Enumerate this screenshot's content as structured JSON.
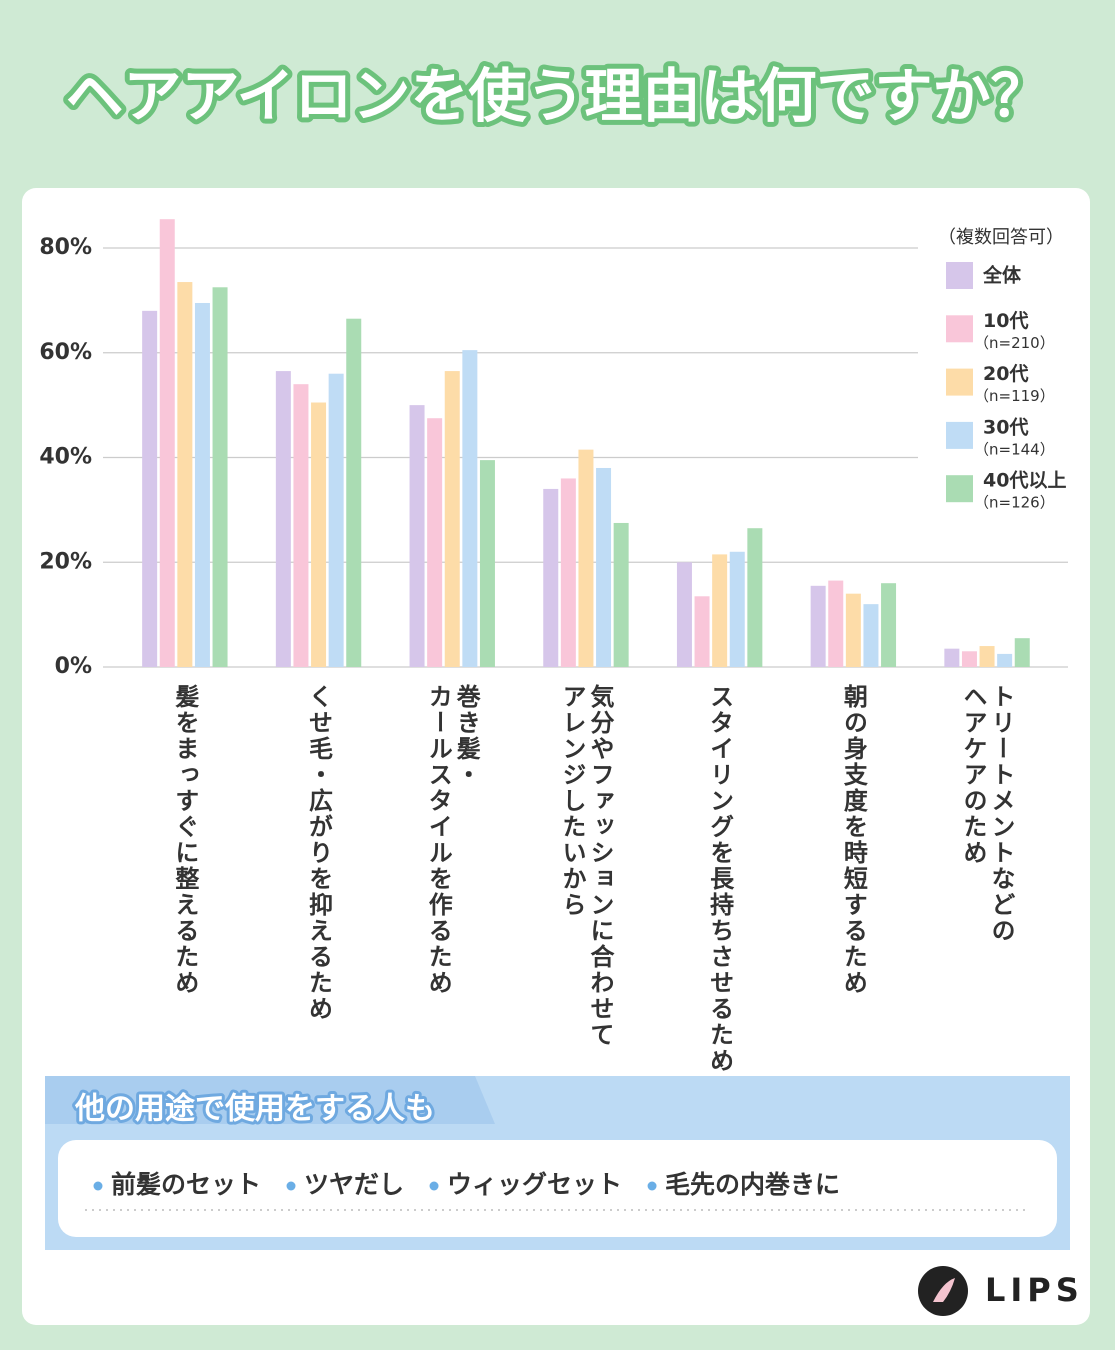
{
  "title": "ヘアアイロンを使う理由は何ですか？",
  "chart_data": {
    "type": "bar",
    "categories": [
      "髪をまっすぐに整えるため",
      "くせ毛・広がりを抑えるため",
      "巻き髪・\nカールスタイルを作るため",
      "気分やファッションに合わせて\nアレンジしたいから",
      "スタイリングを長持ちさせるため",
      "朝の身支度を時短するため",
      "トリートメントなどの\nヘアケアのため"
    ],
    "series": [
      {
        "name": "全体",
        "color": "#d6c6ea",
        "values": [
          68,
          56.5,
          50,
          34,
          20,
          15.5,
          3.5
        ]
      },
      {
        "name": "10代",
        "note": "（n=210）",
        "color": "#f9c6d9",
        "values": [
          85.5,
          54,
          47.5,
          36,
          13.5,
          16.5,
          3
        ]
      },
      {
        "name": "20代",
        "note": "（n=119）",
        "color": "#fddca8",
        "values": [
          73.5,
          50.5,
          56.5,
          41.5,
          21.5,
          14,
          4
        ]
      },
      {
        "name": "30代",
        "note": "（n=144）",
        "color": "#bfdcf5",
        "values": [
          69.5,
          56,
          60.5,
          38,
          22,
          12,
          2.5
        ]
      },
      {
        "name": "40代以上",
        "note": "（n=126）",
        "color": "#aadcb3",
        "values": [
          72.5,
          66.5,
          39.5,
          27.5,
          26.5,
          16,
          5.5
        ]
      }
    ],
    "legend_title": "（複数回答可）",
    "ylim": [
      0,
      80
    ],
    "yticks": [
      {
        "value": 0,
        "label": "0%"
      },
      {
        "value": 20,
        "label": "20%"
      },
      {
        "value": 40,
        "label": "40%"
      },
      {
        "value": 60,
        "label": "60%"
      },
      {
        "value": 80,
        "label": "80%"
      }
    ],
    "grid": true
  },
  "extras": {
    "heading": "他の用途で使用をする人も",
    "items": [
      "前髪のセット",
      "ツヤだし",
      "ウィッグセット",
      "毛先の内巻きに"
    ]
  },
  "brand": "LIPS"
}
